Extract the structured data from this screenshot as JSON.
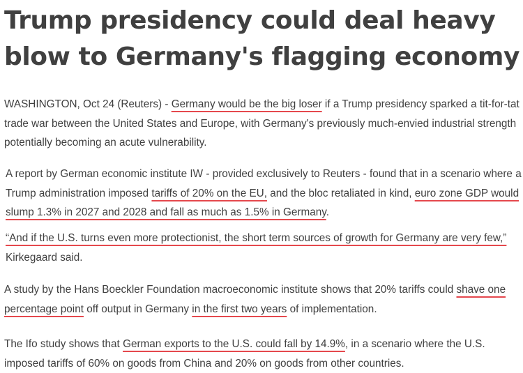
{
  "headline": "Trump presidency could deal heavy blow to Germany's flagging economy",
  "article": {
    "p1": {
      "a": "WASHINGTON, Oct 24 (Reuters) - ",
      "hl1": "Germany would be the big loser",
      "b": " if a Trump presidency sparked a tit-for-tat trade war between the United States and Europe, with Germany's previously much-envied industrial strength potentially becoming an acute vulnerability."
    },
    "p2": {
      "a": "A report by German economic institute IW - provided exclusively to Reuters - found that in a scenario where a Trump administration imposed ",
      "hl1": "tariffs of 20% on the EU,",
      "b": " and the bloc retaliated in kind, ",
      "hl2": "euro zone GDP would slump 1.3% in 2027 and 2028 and fall as much as 1.5% in Germany",
      "c": "."
    },
    "p3": {
      "hl1": "“And if the U.S. turns even more protectionist, the short term sources of growth for Germany are very few,”",
      "b": " Kirkegaard said."
    },
    "p4": {
      "a": "A study by the Hans Boeckler Foundation macroeconomic institute shows that 20% tariffs could ",
      "hl1": "shave one percentage point",
      "b": " off output in Germany ",
      "hl2": "in the first two years",
      "c": " of implementation."
    },
    "p5": {
      "a": "The Ifo study shows that ",
      "hl1": "German exports to the U.S. could fall by 14.9%",
      "b": ", in a scenario where the U.S. imposed tariffs of 60% on goods from China and 20% on goods from other countries."
    }
  },
  "colors": {
    "text": "#404040",
    "underline_accent": "#e5484d",
    "background": "#ffffff"
  }
}
